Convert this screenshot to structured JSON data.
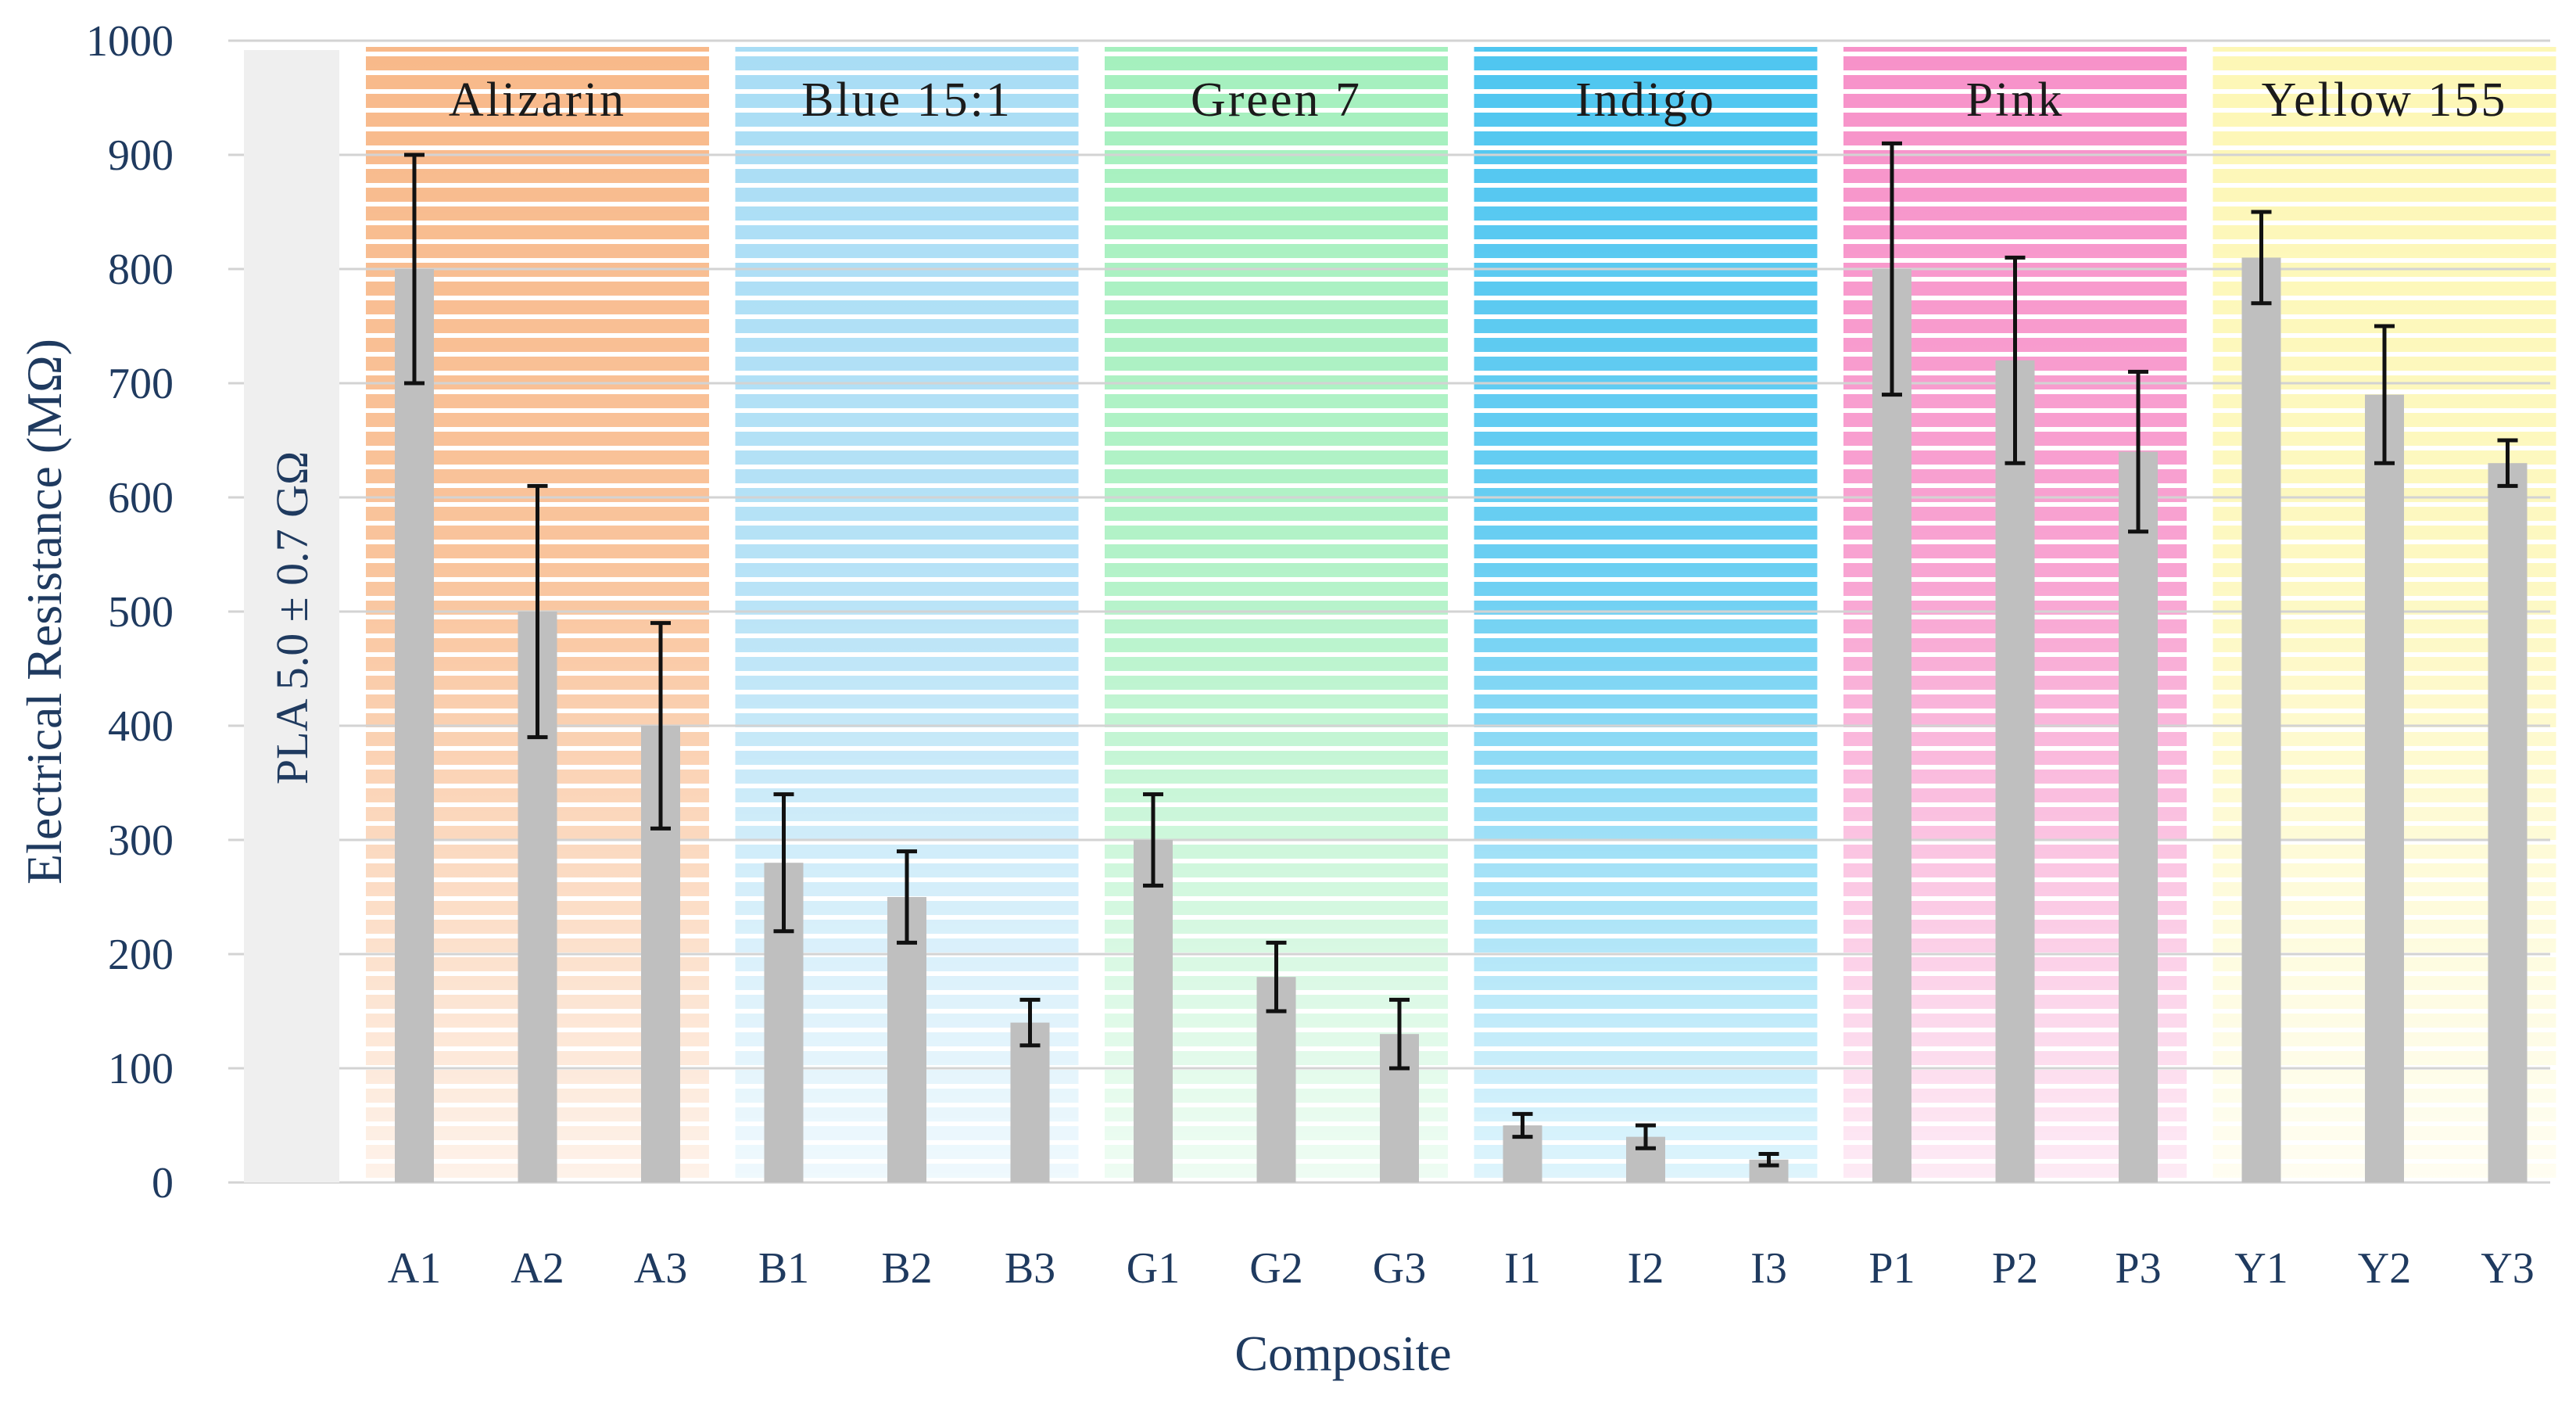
{
  "chart_data": {
    "type": "bar",
    "title": "",
    "xlabel": "Composite",
    "ylabel": "Electrical Resistance (MΩ)",
    "ylim": [
      0,
      1000
    ],
    "yticks": [
      "0",
      "100",
      "200",
      "300",
      "400",
      "500",
      "600",
      "700",
      "800",
      "900",
      "1000"
    ],
    "grid": true,
    "baseline_annotation": "PLA 5.0 ± 0.7 GΩ",
    "categories": [
      "A1",
      "A2",
      "A3",
      "B1",
      "B2",
      "B3",
      "G1",
      "G2",
      "G3",
      "I1",
      "I2",
      "I3",
      "P1",
      "P2",
      "P3",
      "Y1",
      "Y2",
      "Y3"
    ],
    "values": [
      800,
      500,
      400,
      280,
      250,
      140,
      300,
      180,
      130,
      50,
      40,
      20,
      800,
      720,
      640,
      810,
      690,
      630
    ],
    "error_low": [
      700,
      390,
      310,
      220,
      210,
      120,
      260,
      150,
      100,
      40,
      30,
      15,
      690,
      630,
      570,
      770,
      630,
      610
    ],
    "error_high": [
      900,
      610,
      490,
      340,
      290,
      160,
      340,
      210,
      160,
      60,
      50,
      25,
      910,
      810,
      710,
      850,
      750,
      650
    ],
    "bar_color": "#BFBFBF",
    "groups": [
      {
        "name": "Alizarin",
        "color": "#F8B98A",
        "start": 0,
        "end": 2
      },
      {
        "name": "Blue 15:1",
        "color": "#A9DDF5",
        "start": 3,
        "end": 5
      },
      {
        "name": "Green 7",
        "color": "#A5F0BE",
        "start": 6,
        "end": 8
      },
      {
        "name": "Indigo",
        "color": "#4FC6F0",
        "start": 9,
        "end": 11
      },
      {
        "name": "Pink",
        "color": "#F792C9",
        "start": 12,
        "end": 14
      },
      {
        "name": "Yellow 155",
        "color": "#FDF7B6",
        "start": 15,
        "end": 17
      }
    ],
    "pla_panel_color": "#EFEFEF"
  }
}
